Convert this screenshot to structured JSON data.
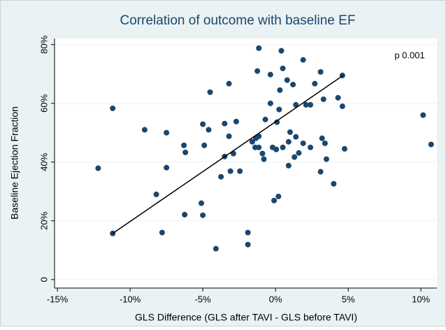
{
  "chart_data": {
    "type": "scatter",
    "title": "Correlation of outcome with baseline EF",
    "xlabel": "GLS Difference (GLS after TAVI - GLS before TAVI)",
    "ylabel": "Baseline Ejection Fraction",
    "annotation": "p 0.001",
    "xlim": [
      -15.2,
      11.1
    ],
    "ylim": [
      -2.9,
      82.1
    ],
    "xticks": [
      {
        "value": -15,
        "label": "-15%"
      },
      {
        "value": -10,
        "label": "-10%"
      },
      {
        "value": -5,
        "label": "-5%"
      },
      {
        "value": 0,
        "label": "0%"
      },
      {
        "value": 5,
        "label": "5%"
      },
      {
        "value": 10,
        "label": "10%"
      }
    ],
    "yticks": [
      0,
      {
        "value": 20,
        "label": "20%"
      },
      {
        "value": 40,
        "label": "40%"
      },
      {
        "value": 60,
        "label": "60%"
      },
      {
        "value": 80,
        "label": "80%"
      }
    ],
    "grid": true,
    "color": "#1a476f",
    "x": [
      -11.2,
      -12.2,
      -11.2,
      -9.0,
      -8.2,
      -7.8,
      -7.5,
      -7.5,
      -6.3,
      -6.2,
      -6.25,
      -5.0,
      -4.9,
      -5.1,
      -5.0,
      -4.5,
      -4.6,
      -4.1,
      -3.2,
      -3.5,
      -3.2,
      -2.9,
      -2.7,
      -3.1,
      -3.5,
      -3.75,
      -2.45,
      -1.9,
      -1.9,
      -1.15,
      -1.25,
      -1.6,
      -1.35,
      -1.4,
      -1.15,
      -1.15,
      -0.9,
      -0.8,
      -0.7,
      -0.35,
      -0.35,
      -0.2,
      -0.1,
      0.05,
      0.1,
      0.25,
      0.3,
      0.2,
      0.4,
      0.5,
      0.5,
      0.8,
      1.0,
      0.9,
      0.9,
      1.2,
      1.4,
      1.3,
      1.6,
      1.4,
      1.9,
      1.9,
      2.1,
      2.4,
      2.4,
      2.7,
      3.1,
      3.1,
      3.2,
      3.3,
      3.4,
      3.5,
      4.0,
      4.3,
      4.6,
      4.6,
      4.75,
      10.15,
      10.7
    ],
    "y": [
      58.3,
      37.9,
      15.7,
      51.0,
      29.0,
      16.0,
      50.0,
      38.1,
      45.7,
      43.3,
      22.1,
      52.9,
      45.7,
      26.0,
      21.9,
      63.8,
      51.0,
      10.5,
      66.7,
      53.1,
      48.8,
      42.9,
      53.8,
      36.9,
      41.9,
      35.0,
      36.9,
      16.0,
      11.9,
      78.8,
      71.0,
      46.9,
      48.1,
      45.0,
      48.8,
      45.0,
      42.9,
      41.0,
      54.5,
      69.8,
      60.0,
      45.0,
      26.9,
      44.3,
      53.6,
      57.9,
      64.5,
      28.3,
      77.9,
      45.0,
      71.9,
      67.9,
      50.2,
      46.9,
      38.8,
      66.4,
      59.5,
      41.7,
      43.1,
      48.6,
      46.4,
      74.8,
      59.5,
      59.5,
      45.0,
      66.7,
      70.7,
      36.7,
      48.1,
      61.4,
      46.4,
      41.0,
      32.6,
      61.9,
      59.0,
      69.5,
      44.5,
      56.0,
      46.0
    ],
    "fit": {
      "x": [
        -11.2,
        4.65
      ],
      "y": [
        15.7,
        69.5
      ],
      "color": "#000000"
    }
  }
}
